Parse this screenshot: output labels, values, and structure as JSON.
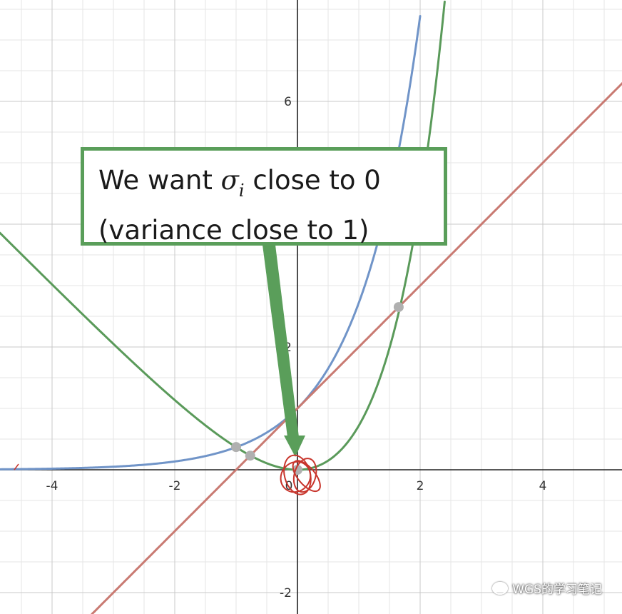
{
  "chart_data": {
    "type": "line",
    "title": "",
    "xlabel": "",
    "ylabel": "",
    "xlim": [
      -4.85,
      5.3
    ],
    "ylim": [
      -2.3,
      7.6
    ],
    "x_ticks": [
      "-4",
      "-2",
      "0",
      "2",
      "4"
    ],
    "y_ticks": [
      "-2",
      "2",
      "6"
    ],
    "grid": true,
    "series": [
      {
        "color": "#7094c8",
        "expr": "e^x",
        "x": [
          -4.85,
          -4,
          -3,
          -2,
          -1,
          0,
          1,
          1.5,
          2.0
        ],
        "y": [
          0.008,
          0.018,
          0.05,
          0.135,
          0.368,
          1.0,
          2.718,
          4.48,
          7.39
        ]
      },
      {
        "color": "#c97a72",
        "expr": "1 + x",
        "x": [
          -3.35,
          5.3
        ],
        "y": [
          -2.35,
          6.3
        ]
      },
      {
        "color": "#5a9a5a",
        "expr": "e^x - 1 - x",
        "x": [
          -4.85,
          -4,
          -3,
          -2,
          -1,
          0,
          1,
          1.5,
          2.0,
          2.4
        ],
        "y": [
          3.86,
          3.02,
          2.05,
          1.14,
          0.37,
          0,
          0.72,
          1.98,
          4.39,
          7.62
        ]
      }
    ],
    "points": [
      {
        "x": -1,
        "y": 0.37,
        "color": "#b0b0b0"
      },
      {
        "x": -0.77,
        "y": 0.23,
        "color": "#b0b0b0"
      },
      {
        "x": 0,
        "y": 0.0,
        "color": "#b0b0b0"
      },
      {
        "x": 1.65,
        "y": 2.65,
        "color": "#b0b0b0"
      }
    ],
    "annotation": {
      "line1_prefix": "We want ",
      "symbol": "σ",
      "subscript": "i",
      "line1_suffix": " close to 0",
      "line2": "(variance close to 1)",
      "arrow_color": "#5a9e5a",
      "circle_color": "#c8352c"
    }
  },
  "watermark": {
    "text": "WGS的学习笔记",
    "icon": "wechat-icon"
  }
}
